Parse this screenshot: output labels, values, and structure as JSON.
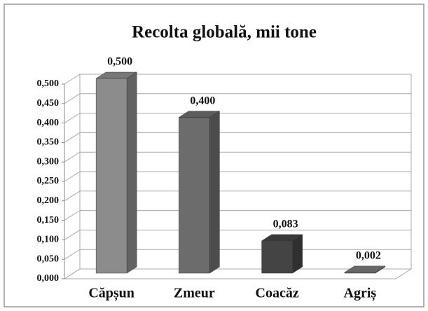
{
  "chart_data": {
    "type": "bar3d",
    "title": "Recolta globală, mii tone",
    "categories": [
      "Căpșun",
      "Zmeur",
      "Coacăz",
      "Agriș"
    ],
    "values": [
      0.5,
      0.4,
      0.083,
      0.002
    ],
    "value_labels": [
      "0,500",
      "0,400",
      "0,083",
      "0,002"
    ],
    "colors": [
      "#8c8c8c",
      "#6c6c6c",
      "#444444",
      "#7a7a7a"
    ],
    "ylim": [
      0,
      0.5
    ],
    "yticks": [
      {
        "value": 0,
        "label": "0,000"
      },
      {
        "value": 0.05,
        "label": "0,050"
      },
      {
        "value": 0.1,
        "label": "0,100"
      },
      {
        "value": 0.15,
        "label": "0,150"
      },
      {
        "value": 0.2,
        "label": "0,200"
      },
      {
        "value": 0.25,
        "label": "0,250"
      },
      {
        "value": 0.3,
        "label": "0,300"
      },
      {
        "value": 0.35,
        "label": "0,350"
      },
      {
        "value": 0.4,
        "label": "0,400"
      },
      {
        "value": 0.45,
        "label": "0,450"
      },
      {
        "value": 0.5,
        "label": "0,500"
      }
    ],
    "grid": true
  }
}
